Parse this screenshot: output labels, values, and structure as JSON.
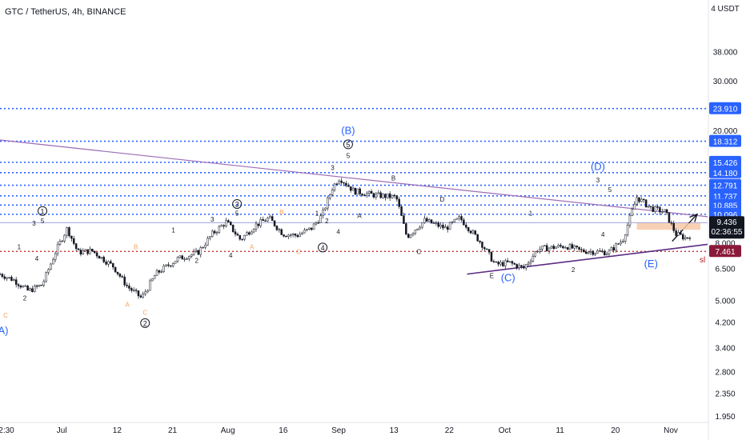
{
  "header": {
    "symbol": "GTC / TetherUS, 4h, BINANCE",
    "currency": "USDT"
  },
  "colors": {
    "background": "#ffffff",
    "candle": "#131722",
    "level_line": "#2962ff",
    "resistance_line": "#9c6bb5",
    "support_line": "#5b2c83",
    "stop_line": "#b71c1c",
    "current_price_badge": "#131722",
    "stop_badge": "#8b1a3a",
    "wave_blue": "#2962ff",
    "wave_orange": "#f7a05a",
    "zone_fill": "#f7c9a8"
  },
  "chart_data": {
    "type": "candlestick",
    "title": "GTC / TetherUS, 4h, BINANCE",
    "y_scale": "log",
    "ylim": [
      1.85,
      55
    ],
    "y_ticks": [
      "4 USDT",
      "38.000",
      "30.000",
      "20.000",
      "8.000",
      "6.500",
      "5.000",
      "4.200",
      "3.400",
      "2.800",
      "2.350",
      "1.950"
    ],
    "x_ticks": [
      "2:30",
      "Jul",
      "12",
      "21",
      "Aug",
      "16",
      "Sep",
      "13",
      "22",
      "Oct",
      "11",
      "20",
      "Nov"
    ],
    "price_levels": [
      {
        "label": "23.910",
        "value": 23.91,
        "style": "dotted"
      },
      {
        "label": "18.312",
        "value": 18.312,
        "style": "dotted"
      },
      {
        "label": "15.426",
        "value": 15.426,
        "style": "dotted"
      },
      {
        "label": "14.180",
        "value": 14.18,
        "style": "dotted"
      },
      {
        "label": "12.791",
        "value": 12.791,
        "style": "dotted"
      },
      {
        "label": "11.737",
        "value": 11.737,
        "style": "dotted"
      },
      {
        "label": "10.885",
        "value": 10.885,
        "style": "dotted"
      },
      {
        "label": "10.096",
        "value": 10.096,
        "style": "dotted"
      }
    ],
    "current_price": {
      "label": "9.436",
      "countdown": "02:36:55",
      "value": 9.436
    },
    "stop_level": {
      "label": "7.461",
      "value": 7.461,
      "annotation": "sl"
    },
    "price_path": [
      [
        0.0,
        6.2
      ],
      [
        0.02,
        5.9
      ],
      [
        0.04,
        5.4
      ],
      [
        0.06,
        5.7
      ],
      [
        0.08,
        7.6
      ],
      [
        0.095,
        9.0
      ],
      [
        0.11,
        7.4
      ],
      [
        0.13,
        7.5
      ],
      [
        0.16,
        6.6
      ],
      [
        0.18,
        5.6
      ],
      [
        0.2,
        5.1
      ],
      [
        0.22,
        6.2
      ],
      [
        0.25,
        7.0
      ],
      [
        0.28,
        7.4
      ],
      [
        0.3,
        8.6
      ],
      [
        0.32,
        9.5
      ],
      [
        0.34,
        8.2
      ],
      [
        0.36,
        9.2
      ],
      [
        0.38,
        9.8
      ],
      [
        0.4,
        8.6
      ],
      [
        0.42,
        8.5
      ],
      [
        0.44,
        9.0
      ],
      [
        0.455,
        10.0
      ],
      [
        0.47,
        12.6
      ],
      [
        0.48,
        13.6
      ],
      [
        0.5,
        12.2
      ],
      [
        0.53,
        11.8
      ],
      [
        0.56,
        11.6
      ],
      [
        0.575,
        8.4
      ],
      [
        0.6,
        9.6
      ],
      [
        0.63,
        9.0
      ],
      [
        0.65,
        9.8
      ],
      [
        0.68,
        8.0
      ],
      [
        0.7,
        6.7
      ],
      [
        0.72,
        6.8
      ],
      [
        0.74,
        6.5
      ],
      [
        0.76,
        7.6
      ],
      [
        0.8,
        7.8
      ],
      [
        0.82,
        7.5
      ],
      [
        0.86,
        7.4
      ],
      [
        0.88,
        8.2
      ],
      [
        0.9,
        11.6
      ],
      [
        0.92,
        10.6
      ],
      [
        0.94,
        10.3
      ],
      [
        0.955,
        8.6
      ],
      [
        0.97,
        8.3
      ],
      [
        0.99,
        9.2
      ],
      [
        1.0,
        9.4
      ]
    ],
    "trend_lines": [
      {
        "name": "resistance",
        "from": [
          0.0,
          18.5
        ],
        "to": [
          1.0,
          9.9
        ]
      },
      {
        "name": "support",
        "from": [
          0.66,
          6.2
        ],
        "to": [
          1.0,
          7.9
        ]
      }
    ],
    "projection_arrow": {
      "from": [
        0.95,
        8.1
      ],
      "to": [
        0.985,
        10.1
      ]
    },
    "wave_labels": [
      {
        "text": "(A)",
        "color": "blue",
        "x": 0.002,
        "y": 3.8
      },
      {
        "text": "C",
        "color": "orange",
        "x": 0.008,
        "y": 4.35
      },
      {
        "text": "2",
        "color": "dark",
        "x": 0.035,
        "y": 5.0
      },
      {
        "text": "1",
        "color": "dark",
        "x": 0.027,
        "y": 7.6
      },
      {
        "text": "3",
        "color": "dark",
        "x": 0.048,
        "y": 9.2
      },
      {
        "text": "4",
        "color": "dark",
        "x": 0.052,
        "y": 6.9
      },
      {
        "text": "1",
        "color": "circle",
        "x": 0.06,
        "y": 10.1
      },
      {
        "text": "5",
        "color": "dark",
        "x": 0.06,
        "y": 9.4
      },
      {
        "text": "A",
        "color": "orange",
        "x": 0.18,
        "y": 4.75
      },
      {
        "text": "C",
        "color": "orange",
        "x": 0.205,
        "y": 4.45
      },
      {
        "text": "B",
        "color": "orange",
        "x": 0.192,
        "y": 7.6
      },
      {
        "text": "2",
        "color": "circle",
        "x": 0.205,
        "y": 4.05
      },
      {
        "text": "1",
        "color": "dark",
        "x": 0.245,
        "y": 8.7
      },
      {
        "text": "2",
        "color": "dark",
        "x": 0.278,
        "y": 6.8
      },
      {
        "text": "3",
        "color": "dark",
        "x": 0.3,
        "y": 9.5
      },
      {
        "text": "4",
        "color": "dark",
        "x": 0.326,
        "y": 7.1
      },
      {
        "text": "3",
        "color": "circle",
        "x": 0.335,
        "y": 10.7
      },
      {
        "text": "5",
        "color": "dark",
        "x": 0.335,
        "y": 10.0
      },
      {
        "text": "A",
        "color": "orange",
        "x": 0.356,
        "y": 7.6
      },
      {
        "text": "B",
        "color": "orange",
        "x": 0.398,
        "y": 10.1
      },
      {
        "text": "C",
        "color": "orange",
        "x": 0.422,
        "y": 7.3
      },
      {
        "text": "4",
        "color": "circle",
        "x": 0.456,
        "y": 7.5
      },
      {
        "text": "1",
        "color": "dark",
        "x": 0.448,
        "y": 10.0
      },
      {
        "text": "2",
        "color": "dark",
        "x": 0.462,
        "y": 9.4
      },
      {
        "text": "3",
        "color": "dark",
        "x": 0.47,
        "y": 14.5
      },
      {
        "text": "4",
        "color": "dark",
        "x": 0.478,
        "y": 8.6
      },
      {
        "text": "(B)",
        "color": "blue",
        "x": 0.492,
        "y": 19.4
      },
      {
        "text": "5",
        "color": "circle",
        "x": 0.492,
        "y": 17.4
      },
      {
        "text": "5",
        "color": "dark",
        "x": 0.492,
        "y": 16.0
      },
      {
        "text": "A",
        "color": "dark",
        "x": 0.508,
        "y": 9.8
      },
      {
        "text": "B",
        "color": "dark",
        "x": 0.556,
        "y": 13.3
      },
      {
        "text": "C",
        "color": "dark",
        "x": 0.592,
        "y": 7.3
      },
      {
        "text": "D",
        "color": "dark",
        "x": 0.625,
        "y": 11.2
      },
      {
        "text": "E",
        "color": "dark",
        "x": 0.695,
        "y": 6.0
      },
      {
        "text": "(C)",
        "color": "blue",
        "x": 0.718,
        "y": 5.85
      },
      {
        "text": "1",
        "color": "dark",
        "x": 0.75,
        "y": 10.0
      },
      {
        "text": "2",
        "color": "dark",
        "x": 0.81,
        "y": 6.3
      },
      {
        "text": "3",
        "color": "dark",
        "x": 0.845,
        "y": 13.1
      },
      {
        "text": "4",
        "color": "dark",
        "x": 0.852,
        "y": 8.4
      },
      {
        "text": "(D)",
        "color": "blue",
        "x": 0.845,
        "y": 14.5
      },
      {
        "text": "5",
        "color": "dark",
        "x": 0.862,
        "y": 12.1
      },
      {
        "text": "(E)",
        "color": "blue",
        "x": 0.92,
        "y": 6.55
      }
    ],
    "entry_zone": {
      "x_from": 0.9,
      "x_to": 0.99,
      "low": 8.9,
      "high": 9.4
    }
  }
}
